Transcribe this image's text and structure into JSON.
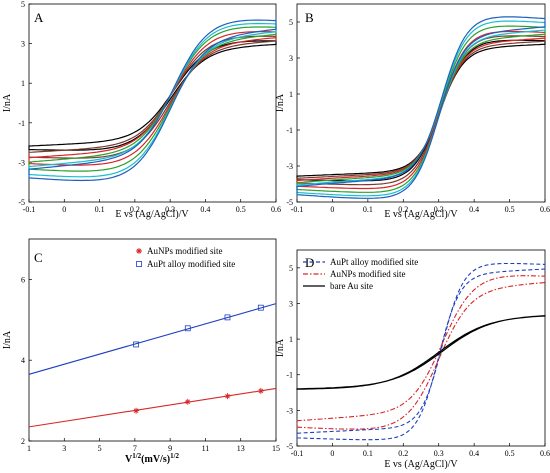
{
  "chart_data": [
    {
      "panel": "A",
      "type": "line",
      "xlabel": "E vs (Ag/AgCl)/V",
      "ylabel": "I/nA",
      "xlim": [
        -0.1,
        0.6
      ],
      "ylim": [
        -5,
        5
      ],
      "xticks": [
        "-0.1",
        "0",
        "0.1",
        "0.2",
        "0.3",
        "0.4",
        "0.5",
        "0.6"
      ],
      "yticks": [
        "-5",
        "-3",
        "-1",
        "1",
        "3",
        "5"
      ],
      "xtick_values": [
        -0.1,
        0,
        0.1,
        0.2,
        0.3,
        0.4,
        0.5,
        0.6
      ],
      "ytick_values": [
        -5,
        -3,
        -1,
        1,
        3,
        5
      ],
      "e_half": 0.3,
      "width": 0.05,
      "series": [
        {
          "color": "#000000",
          "i_low": -2.2,
          "i_high": 3.0,
          "gap": 0.45
        },
        {
          "color": "#7a3b2e",
          "i_low": -2.55,
          "i_high": 3.2,
          "gap": 0.6
        },
        {
          "color": "#d62728",
          "i_low": -2.85,
          "i_high": 3.4,
          "gap": 0.75
        },
        {
          "color": "#2ca02c",
          "i_low": -3.1,
          "i_high": 3.6,
          "gap": 0.9
        },
        {
          "color": "#17becf",
          "i_low": -3.35,
          "i_high": 3.75,
          "gap": 1.0
        },
        {
          "color": "#1f5fbf",
          "i_low": -3.5,
          "i_high": 3.9,
          "gap": 1.1
        }
      ]
    },
    {
      "panel": "B",
      "type": "line",
      "xlabel": "E vs (Ag/AgCl)/V",
      "ylabel": "I/nA",
      "xlim": [
        -0.1,
        0.6
      ],
      "ylim": [
        -5,
        6
      ],
      "xticks": [
        "-0.1",
        "0",
        "0.1",
        "0.2",
        "0.3",
        "0.4",
        "0.5",
        "0.6"
      ],
      "yticks": [
        "-5",
        "-3",
        "-1",
        "1",
        "3",
        "5"
      ],
      "xtick_values": [
        -0.1,
        0,
        0.1,
        0.2,
        0.3,
        0.4,
        0.5,
        0.6
      ],
      "ytick_values": [
        -5,
        -3,
        -1,
        1,
        3,
        5
      ],
      "e_half": 0.3,
      "width": 0.035,
      "series": [
        {
          "color": "#000000",
          "i_low": -3.6,
          "i_high": 3.8,
          "gap": 0.5
        },
        {
          "color": "#7a3b2e",
          "i_low": -3.75,
          "i_high": 4.0,
          "gap": 0.65
        },
        {
          "color": "#d62728",
          "i_low": -3.9,
          "i_high": 4.2,
          "gap": 0.8
        },
        {
          "color": "#2ca02c",
          "i_low": -4.05,
          "i_high": 4.45,
          "gap": 0.95
        },
        {
          "color": "#17becf",
          "i_low": -4.2,
          "i_high": 4.7,
          "gap": 1.05
        },
        {
          "color": "#1f5fbf",
          "i_low": -4.3,
          "i_high": 4.9,
          "gap": 1.15
        }
      ]
    },
    {
      "panel": "C",
      "type": "scatter",
      "xlabel_main": "V",
      "xlabel_sup1": "1/2",
      "xlabel_mid": "(mV/s)",
      "xlabel_sup2": "1/2",
      "ylabel": "I/nA",
      "xlim": [
        1,
        15
      ],
      "ylim": [
        2,
        7
      ],
      "xticks": [
        "1",
        "3",
        "5",
        "7",
        "9",
        "11",
        "13",
        "15"
      ],
      "yticks": [
        "2",
        "4",
        "6"
      ],
      "xtick_values": [
        1,
        3,
        5,
        7,
        9,
        11,
        13,
        15
      ],
      "ytick_values": [
        2,
        4,
        6
      ],
      "legend_position": "top-right",
      "series": [
        {
          "name": "AuNPs modified site",
          "marker": "star",
          "color": "#d62728",
          "x": [
            7.07,
            10.0,
            12.25,
            14.14
          ],
          "y": [
            2.75,
            2.97,
            3.11,
            3.24
          ],
          "fit": {
            "x": [
              1,
              15
            ],
            "y": [
              2.35,
              3.3
            ]
          }
        },
        {
          "name": "AuPt alloy modified site",
          "marker": "square",
          "color": "#1f3fbf",
          "x": [
            7.07,
            10.0,
            12.25,
            14.14
          ],
          "y": [
            4.39,
            4.79,
            5.06,
            5.3
          ],
          "fit": {
            "x": [
              1,
              15
            ],
            "y": [
              3.65,
              5.4
            ]
          }
        }
      ]
    },
    {
      "panel": "D",
      "type": "line",
      "xlabel": "E vs (Ag/AgCl)/V",
      "ylabel": "I/nA",
      "xlim": [
        -0.1,
        0.6
      ],
      "ylim": [
        -5,
        6
      ],
      "xticks": [
        "-0.1",
        "0",
        "0.1",
        "0.2",
        "0.3",
        "0.4",
        "0.5",
        "0.6"
      ],
      "yticks": [
        "-5",
        "-3",
        "-1",
        "1",
        "3",
        "5"
      ],
      "xtick_values": [
        -0.1,
        0,
        0.1,
        0.2,
        0.3,
        0.4,
        0.5,
        0.6
      ],
      "ytick_values": [
        -5,
        -3,
        -1,
        1,
        3,
        5
      ],
      "legend_position": "top-left",
      "e_half": 0.3,
      "series": [
        {
          "name": "AuPt alloy modified site",
          "color": "#1f3fbf",
          "dash": "4,2.5",
          "i_low": -4.35,
          "i_high": 5.0,
          "gap": 0.65,
          "width": 0.03
        },
        {
          "name": "AuNPs modified site",
          "color": "#d62728",
          "dash": "5,2,1.5,2",
          "i_low": -3.7,
          "i_high": 4.3,
          "gap": 0.9,
          "width": 0.045
        },
        {
          "name": "bare Au site",
          "color": "#000000",
          "dash": "",
          "i_low": -1.75,
          "i_high": 2.3,
          "gap": 0.05,
          "width": 0.07
        }
      ]
    }
  ]
}
